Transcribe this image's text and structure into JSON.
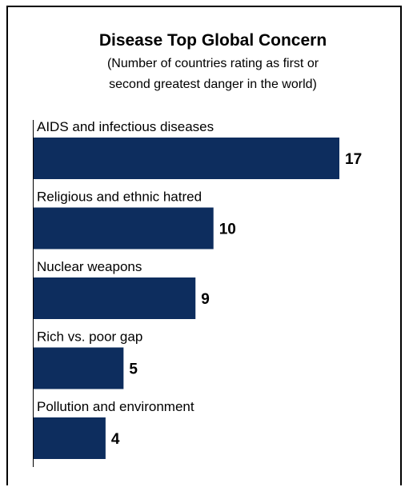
{
  "chart_data": {
    "type": "bar",
    "orientation": "horizontal",
    "title": "Disease Top Global Concern",
    "subtitle_lines": [
      "(Number of countries rating as first or",
      "second greatest danger in the world)"
    ],
    "categories": [
      "AIDS and infectious diseases",
      "Religious and ethnic hatred",
      "Nuclear weapons",
      "Rich vs. poor gap",
      "Pollution and environment"
    ],
    "values": [
      17,
      10,
      9,
      5,
      4
    ],
    "value_labels": [
      "17",
      "10",
      "9",
      "5",
      "4"
    ],
    "xlim": [
      0,
      17
    ],
    "bar_color": "#0d2d5e",
    "grid": false,
    "legend": "none"
  }
}
